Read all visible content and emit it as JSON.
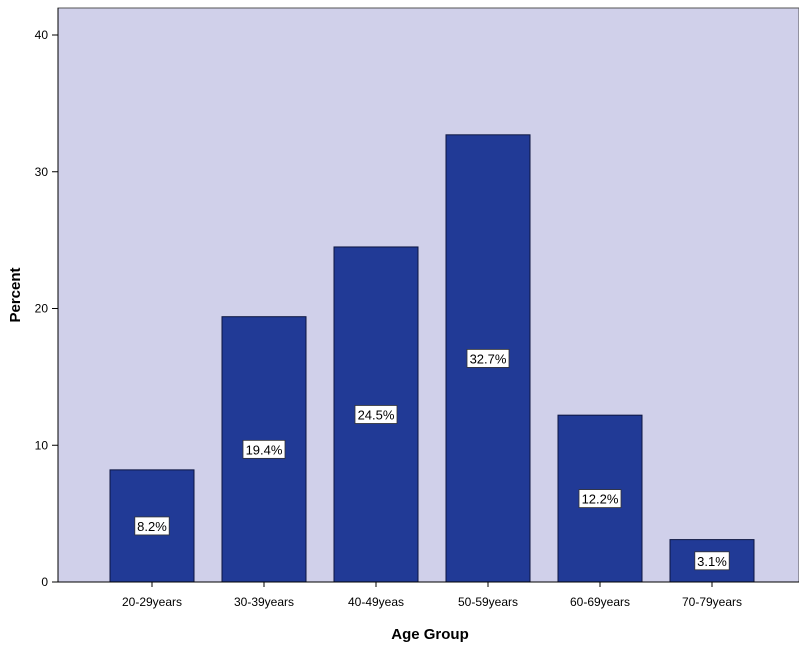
{
  "chart_data": {
    "type": "bar",
    "title": "",
    "xlabel": "Age Group",
    "ylabel": "Percent",
    "ylim": [
      0,
      40
    ],
    "yticks": [
      0,
      10,
      20,
      30,
      40
    ],
    "categories": [
      "20-29years",
      "30-39years",
      "40-49yeas",
      "50-59years",
      "60-69years",
      "70-79years"
    ],
    "values": [
      8.2,
      19.4,
      24.5,
      32.7,
      12.2,
      3.1
    ],
    "data_labels": [
      "8.2%",
      "19.4%",
      "24.5%",
      "32.7%",
      "12.2%",
      "3.1%"
    ],
    "grid": false,
    "legend": "none",
    "colors": {
      "bar": "#213a96",
      "bar_stroke": "#0b1440",
      "plot_background": "#d0d0ea",
      "label_background": "#ffffff"
    }
  }
}
